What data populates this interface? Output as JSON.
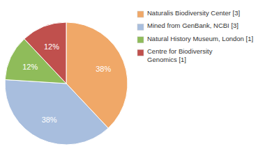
{
  "chart_data": {
    "type": "pie",
    "categories": [
      "Naturalis Biodiversity Center [3]",
      "Mined from GenBank, NCBI [3]",
      "Natural History Museum, London [1]",
      "Centre for Biodiversity\nGenomics [1]"
    ],
    "values": [
      38,
      38,
      12,
      12
    ],
    "value_labels": [
      "38%",
      "38%",
      "12%",
      "12%"
    ],
    "colors": [
      "#f0a868",
      "#a8bede",
      "#8fbc5a",
      "#c0504d"
    ],
    "data_labels": true,
    "legend": "upper right"
  }
}
